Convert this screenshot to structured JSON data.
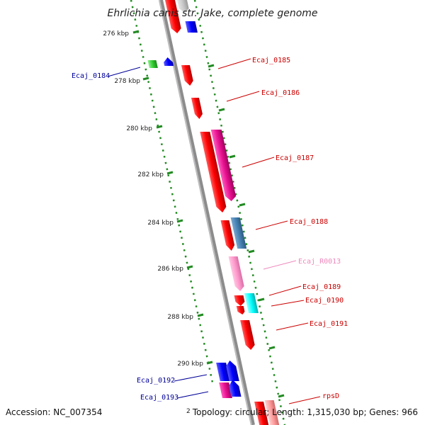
{
  "title": "Ehrlichia canis str. Jake, complete genome",
  "footer": {
    "accession": "Accession: NC_007354",
    "topology": "Topology: circular; Length: 1,315,030 bp; Genes: 966",
    "cut_label": "2"
  },
  "colors": {
    "backbone": "#8c8c8c",
    "tick_track": "#228b22",
    "label_red": "#cc0000",
    "label_blue": "#000099",
    "label_pink": "#ee88bb"
  },
  "kbp_ticks": [
    {
      "label": "276 kbp"
    },
    {
      "label": "278 kbp"
    },
    {
      "label": "280 kbp"
    },
    {
      "label": "282 kbp"
    },
    {
      "label": "284 kbp"
    },
    {
      "label": "286 kbp"
    },
    {
      "label": "288 kbp"
    },
    {
      "label": "290 kbp"
    }
  ],
  "gene_labels": [
    {
      "text": "Ecaj_0184",
      "color": "#000099"
    },
    {
      "text": "Ecaj_0185",
      "color": "#cc0000"
    },
    {
      "text": "Ecaj_0186",
      "color": "#cc0000"
    },
    {
      "text": "Ecaj_0187",
      "color": "#cc0000"
    },
    {
      "text": "Ecaj_0188",
      "color": "#cc0000"
    },
    {
      "text": "Ecaj_R0013",
      "color": "#ee88bb"
    },
    {
      "text": "Ecaj_0189",
      "color": "#cc0000"
    },
    {
      "text": "Ecaj_0190",
      "color": "#cc0000"
    },
    {
      "text": "Ecaj_0191",
      "color": "#cc0000"
    },
    {
      "text": "Ecaj_0192",
      "color": "#000099"
    },
    {
      "text": "Ecaj_0193",
      "color": "#000099"
    },
    {
      "text": "rpsD",
      "color": "#cc0000"
    }
  ]
}
